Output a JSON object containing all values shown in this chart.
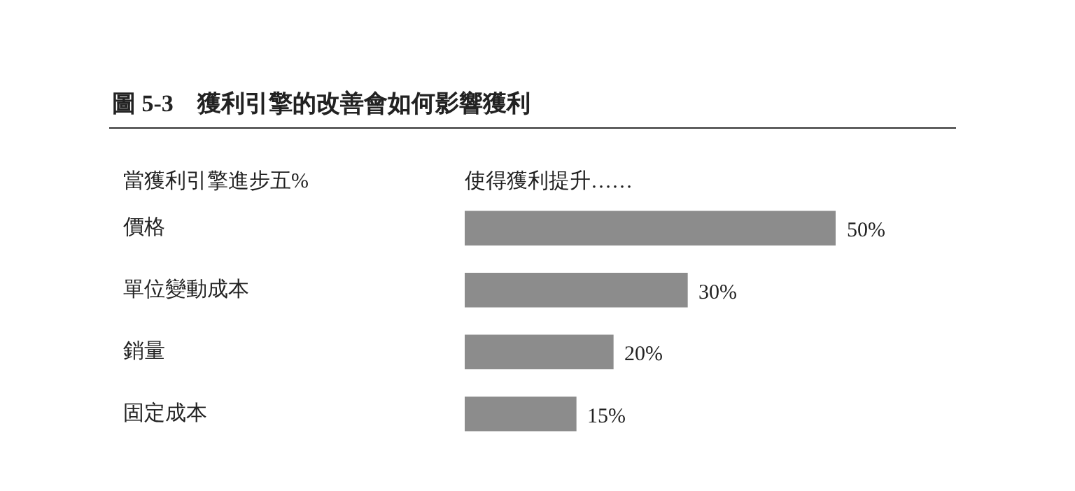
{
  "chart_data": {
    "type": "bar",
    "orientation": "horizontal",
    "title": "圖 5-3　獲利引擎的改善會如何影響獲利",
    "annotations": [
      "當獲利引擎進步五%",
      "使得獲利提升……"
    ],
    "categories": [
      "價格",
      "單位變動成本",
      "銷量",
      "固定成本"
    ],
    "values": [
      50,
      30,
      20,
      15
    ],
    "value_labels": [
      "50%",
      "30%",
      "20%",
      "15%"
    ],
    "color": "#8c8c8c"
  }
}
